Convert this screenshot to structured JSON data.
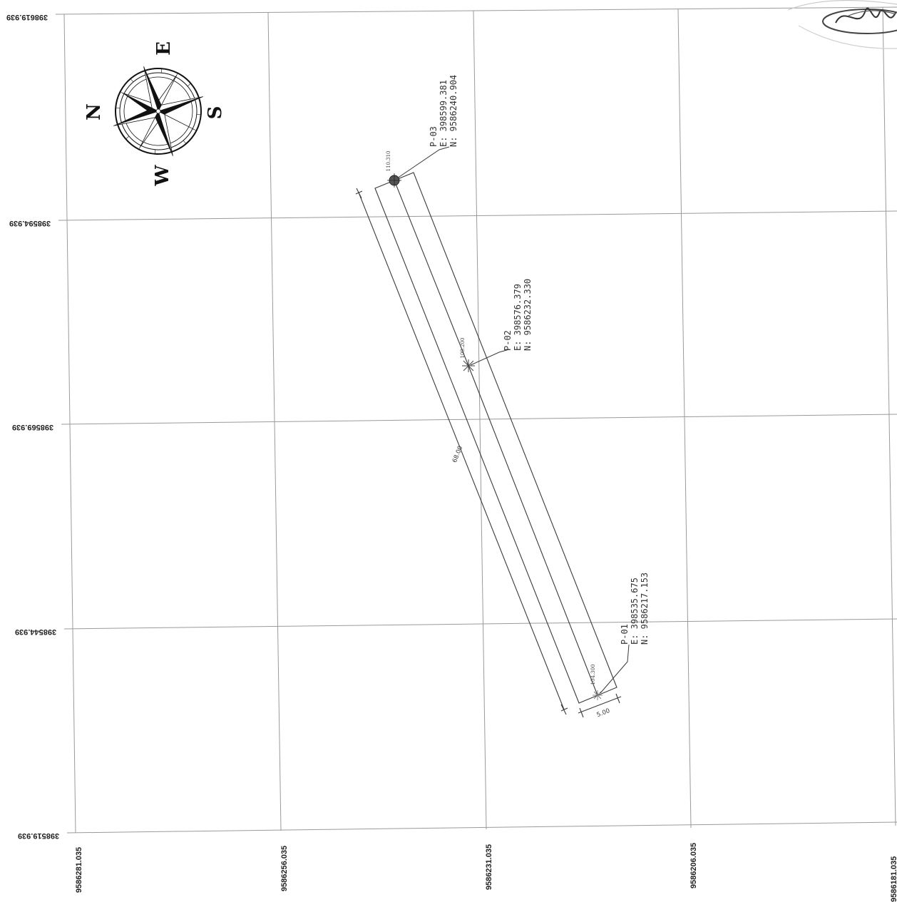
{
  "grid": {
    "left_labels": [
      "398619.939",
      "398594.939",
      "398569.939",
      "398544.939",
      "398519.939"
    ],
    "bottom_labels": [
      "9586281.035",
      "9586256.035",
      "9586231.035",
      "9586206.035",
      "9586181.035"
    ]
  },
  "compass": {
    "north": "N",
    "east": "E",
    "south": "S",
    "west": "W"
  },
  "points": [
    {
      "id": "P-03",
      "easting": "E: 398599.381",
      "northing": "N: 9586240.904",
      "elevation": "110.310"
    },
    {
      "id": "P-02",
      "easting": "E: 398576.379",
      "northing": "N: 9586232.330",
      "elevation": "109.200"
    },
    {
      "id": "P-01",
      "easting": "E: 398535.675",
      "northing": "N: 9586217.153",
      "elevation": "104.300"
    }
  ],
  "dimensions": {
    "length": "68.00",
    "width": "5.00"
  },
  "icons": {
    "compass": "compass-rose-icon",
    "stamp": "signature-stamp-icon",
    "point_marker": "survey-point-icon"
  },
  "colors": {
    "line": "#3a3a3a",
    "grid": "#9a9a9a",
    "background": "#ffffff"
  }
}
